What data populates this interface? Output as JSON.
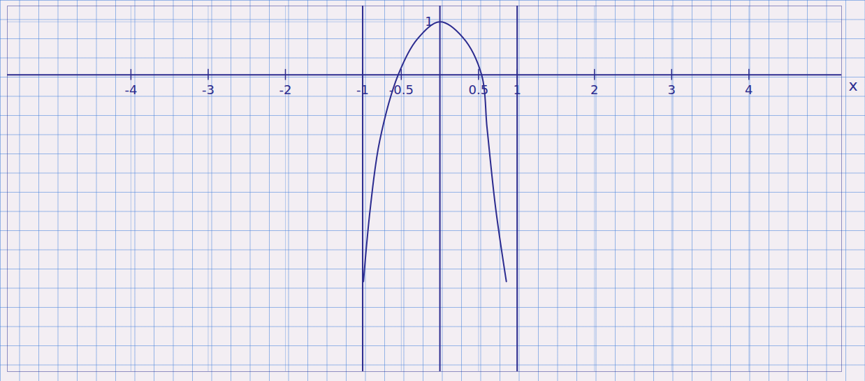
{
  "chart_data": {
    "type": "line",
    "x_label": "x",
    "x": [
      -0.99,
      -0.9,
      -0.78,
      -0.54,
      -0.29,
      0,
      0.3,
      0.54,
      0.61,
      0.72,
      0.86
    ],
    "values": [
      -3.9,
      -2.5,
      -1.25,
      0,
      0.68,
      1,
      0.7,
      0,
      -1,
      -2.5,
      -3.9
    ],
    "asymptotes": [
      -1,
      1
    ],
    "color": "#2b2b8f",
    "xlim": [
      -5.6,
      5.2
    ],
    "ylim": [
      -5.6,
      1.3
    ],
    "xticks": [
      -4,
      -3,
      -2,
      -1,
      -0.5,
      0.5,
      1,
      2,
      3,
      4
    ],
    "yticks": [
      1
    ],
    "grid": true
  }
}
